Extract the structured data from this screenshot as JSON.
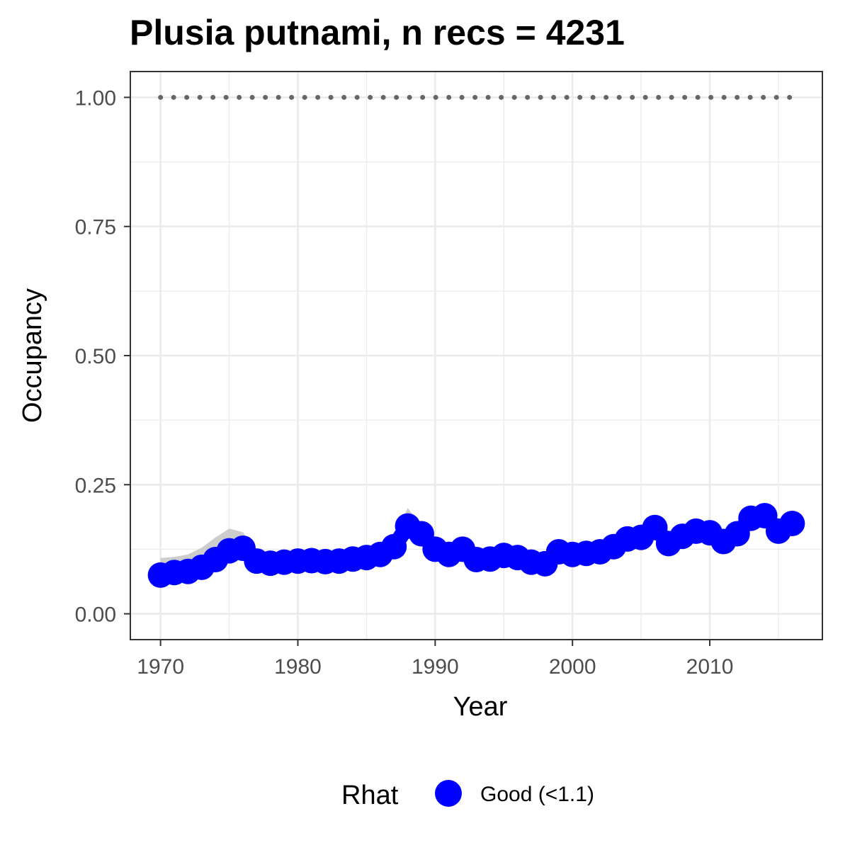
{
  "chart_data": {
    "type": "line",
    "title": "Plusia putnami, n recs = 4231",
    "xlabel": "Year",
    "ylabel": "Occupancy",
    "xlim": [
      1967.8,
      2018.2
    ],
    "ylim": [
      -0.05,
      1.05
    ],
    "xticks": [
      1970,
      1980,
      1990,
      2000,
      2010
    ],
    "xtick_labels": [
      "1970",
      "1980",
      "1990",
      "2000",
      "2010"
    ],
    "yticks": [
      0,
      0.25,
      0.5,
      0.75,
      1
    ],
    "ytick_labels": [
      "0.00",
      "0.25",
      "0.50",
      "0.75",
      "1.00"
    ],
    "grid": true,
    "x": [
      1970,
      1971,
      1972,
      1973,
      1974,
      1975,
      1976,
      1977,
      1978,
      1979,
      1980,
      1981,
      1982,
      1983,
      1984,
      1985,
      1986,
      1987,
      1988,
      1989,
      1990,
      1991,
      1992,
      1993,
      1994,
      1995,
      1996,
      1997,
      1998,
      1999,
      2000,
      2001,
      2002,
      2003,
      2004,
      2005,
      2006,
      2007,
      2008,
      2009,
      2010,
      2011,
      2012,
      2013,
      2014,
      2015,
      2016
    ],
    "series": [
      {
        "name": "Good (<1.1)",
        "values": [
          0.075,
          0.08,
          0.082,
          0.09,
          0.105,
          0.122,
          0.127,
          0.102,
          0.098,
          0.1,
          0.102,
          0.103,
          0.101,
          0.102,
          0.106,
          0.109,
          0.115,
          0.13,
          0.17,
          0.155,
          0.125,
          0.115,
          0.125,
          0.105,
          0.106,
          0.113,
          0.109,
          0.1,
          0.097,
          0.12,
          0.115,
          0.117,
          0.12,
          0.13,
          0.145,
          0.148,
          0.167,
          0.136,
          0.15,
          0.16,
          0.157,
          0.14,
          0.155,
          0.185,
          0.19,
          0.16,
          0.175
        ],
        "lower": [
          0.05,
          0.065,
          0.07,
          0.078,
          0.092,
          0.1,
          0.115,
          0.088,
          0.085,
          0.088,
          0.09,
          0.09,
          0.088,
          0.09,
          0.092,
          0.095,
          0.1,
          0.115,
          0.15,
          0.14,
          0.11,
          0.1,
          0.11,
          0.092,
          0.093,
          0.1,
          0.096,
          0.088,
          0.085,
          0.105,
          0.102,
          0.104,
          0.107,
          0.116,
          0.13,
          0.133,
          0.15,
          0.121,
          0.135,
          0.144,
          0.141,
          0.125,
          0.139,
          0.167,
          0.172,
          0.144,
          0.157
        ],
        "upper": [
          0.108,
          0.11,
          0.115,
          0.128,
          0.148,
          0.165,
          0.158,
          0.117,
          0.112,
          0.113,
          0.115,
          0.118,
          0.116,
          0.118,
          0.12,
          0.124,
          0.131,
          0.147,
          0.205,
          0.17,
          0.14,
          0.13,
          0.14,
          0.118,
          0.12,
          0.127,
          0.123,
          0.113,
          0.11,
          0.135,
          0.129,
          0.131,
          0.134,
          0.145,
          0.16,
          0.163,
          0.184,
          0.151,
          0.165,
          0.176,
          0.173,
          0.155,
          0.171,
          0.203,
          0.208,
          0.176,
          0.193
        ]
      }
    ],
    "reference_value": 1.0,
    "legend": {
      "title": "Rhat",
      "label": "Good (<1.1)",
      "placement": "bottom"
    },
    "colors": {
      "point": "#0000FF",
      "ribbon": "#C8C8C8",
      "reference": "#666666",
      "grid": "#EBEBEB",
      "panel_border": "#333333"
    }
  }
}
